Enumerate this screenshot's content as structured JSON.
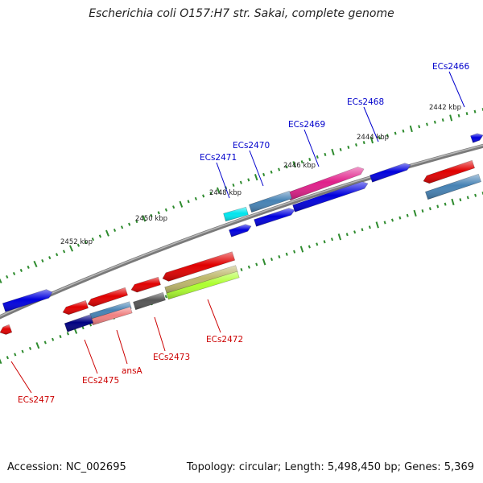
{
  "title": "Escherichia coli O157:H7 str. Sakai, complete genome",
  "footer": {
    "accession": "Accession: NC_002695",
    "info": "Topology: circular; Length: 5,498,450 bp; Genes: 5,369"
  },
  "scale_labels": [
    "2442 kbp",
    "2444 kbp",
    "2446 kbp",
    "2448 kbp",
    "2450 kbp",
    "2452 kbp"
  ],
  "gene_labels": {
    "top": [
      "ECs2466",
      "ECs2468",
      "ECs2469",
      "ECs2470",
      "ECs2471"
    ],
    "bottom": [
      "ECs2472",
      "ECs2473",
      "ansA",
      "ECs2475",
      "ECs2477"
    ]
  },
  "colors": {
    "forward_label": "#0000cc",
    "reverse_label": "#cc0000",
    "backbone": "#8a8a8a",
    "tick": "#2e8b2e",
    "blue": "#0000dd",
    "red": "#e00000",
    "steel": "#4682b4",
    "magenta": "#e0208a",
    "cyan": "#00e5ee",
    "gray": "#555555",
    "navy": "#000080",
    "pink": "#f08080",
    "khaki": "#bdb76b",
    "lime": "#adff2f"
  }
}
